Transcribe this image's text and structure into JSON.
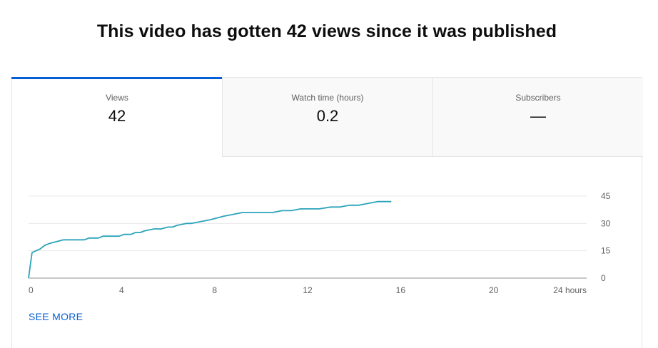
{
  "headline": "This video has gotten 42 views since it was published",
  "tabs": [
    {
      "label": "Views",
      "value": "42",
      "active": true
    },
    {
      "label": "Watch time (hours)",
      "value": "0.2",
      "active": false
    },
    {
      "label": "Subscribers",
      "value": "—",
      "active": false
    }
  ],
  "see_more_label": "SEE MORE",
  "colors": {
    "accent": "#065fd4",
    "series_line": "#2ba3b9"
  },
  "chart_data": {
    "type": "line",
    "title": "",
    "xlabel": "",
    "ylabel": "",
    "xlim": [
      0,
      24
    ],
    "ylim": [
      0,
      45
    ],
    "x_ticks": [
      {
        "value": 0,
        "label": "0"
      },
      {
        "value": 4,
        "label": "4"
      },
      {
        "value": 8,
        "label": "8"
      },
      {
        "value": 12,
        "label": "12"
      },
      {
        "value": 16,
        "label": "16"
      },
      {
        "value": 20,
        "label": "20"
      },
      {
        "value": 24,
        "label": "24 hours"
      }
    ],
    "y_ticks": [
      {
        "value": 0,
        "label": "0"
      },
      {
        "value": 15,
        "label": "15"
      },
      {
        "value": 30,
        "label": "30"
      },
      {
        "value": 45,
        "label": "45"
      }
    ],
    "grid": true,
    "y_axis_side": "right",
    "series": [
      {
        "x": [
          0,
          0.15,
          0.5,
          0.7,
          0.9,
          1.2,
          1.5,
          1.8,
          2.4,
          2.6,
          3.0,
          3.2,
          3.6,
          3.9,
          4.1,
          4.4,
          4.6,
          4.8,
          5.0,
          5.4,
          5.7,
          6.0,
          6.2,
          6.4,
          6.8,
          7.0,
          7.4,
          7.8,
          8.1,
          8.4,
          8.8,
          9.2,
          9.6,
          10.0,
          10.5,
          10.9,
          11.3,
          11.7,
          12.1,
          12.5,
          13.0,
          13.4,
          13.8,
          14.2,
          14.6,
          15.0,
          15.6
        ],
        "y": [
          0,
          14,
          16,
          18,
          19,
          20,
          21,
          21,
          21,
          22,
          22,
          23,
          23,
          23,
          24,
          24,
          25,
          25,
          26,
          27,
          27,
          28,
          28,
          29,
          30,
          30,
          31,
          32,
          33,
          34,
          35,
          36,
          36,
          36,
          36,
          37,
          37,
          38,
          38,
          38,
          39,
          39,
          40,
          40,
          41,
          42,
          42
        ]
      }
    ]
  }
}
